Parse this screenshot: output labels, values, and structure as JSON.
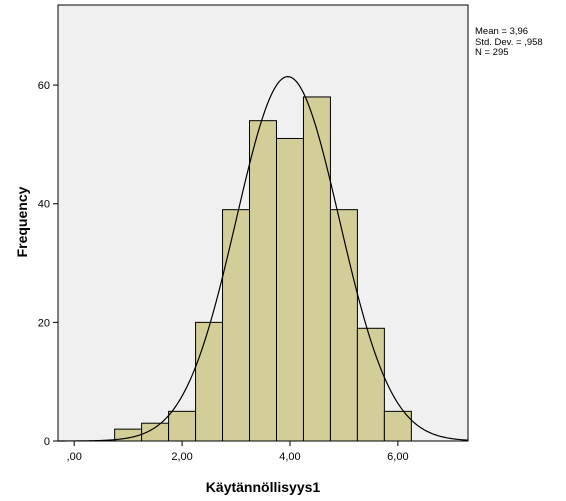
{
  "chart_data": {
    "type": "bar",
    "xlabel": "Käytännöllisyys1",
    "ylabel": "Frequency",
    "bins": [
      {
        "from": 0.75,
        "to": 1.25,
        "count": 2
      },
      {
        "from": 1.25,
        "to": 1.75,
        "count": 3
      },
      {
        "from": 1.75,
        "to": 2.25,
        "count": 5
      },
      {
        "from": 2.25,
        "to": 2.75,
        "count": 20
      },
      {
        "from": 2.75,
        "to": 3.25,
        "count": 39
      },
      {
        "from": 3.25,
        "to": 3.75,
        "count": 54
      },
      {
        "from": 3.75,
        "to": 4.25,
        "count": 51
      },
      {
        "from": 4.25,
        "to": 4.75,
        "count": 58
      },
      {
        "from": 4.75,
        "to": 5.25,
        "count": 39
      },
      {
        "from": 5.25,
        "to": 5.75,
        "count": 19
      },
      {
        "from": 5.75,
        "to": 6.25,
        "count": 5
      }
    ],
    "x_ticks": [
      {
        "value": 0,
        "label": ",00"
      },
      {
        "value": 2,
        "label": "2,00"
      },
      {
        "value": 4,
        "label": "4,00"
      },
      {
        "value": 6,
        "label": "6,00"
      }
    ],
    "y_ticks": [
      {
        "value": 0,
        "label": "0"
      },
      {
        "value": 20,
        "label": "20"
      },
      {
        "value": 40,
        "label": "40"
      },
      {
        "value": 60,
        "label": "60"
      }
    ],
    "xlim": [
      -0.3,
      7.3
    ],
    "ylim": [
      0,
      73.5
    ],
    "normal_curve": {
      "mean": 3.96,
      "sd": 0.958,
      "n": 295,
      "bin_width": 0.5
    },
    "stats_text": [
      "Mean = 3,96",
      "Std. Dev. = ,958",
      "N = 295"
    ],
    "colors": {
      "plot_background": "#f0f0f0",
      "bar_fill": "#d3ce97",
      "bar_stroke": "#000000",
      "curve": "#000000"
    },
    "grid": false
  }
}
